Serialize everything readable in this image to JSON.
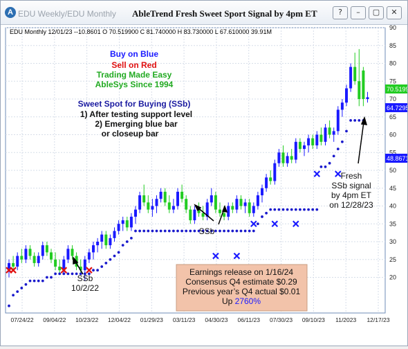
{
  "window": {
    "tabs": [
      "EDU  Weekly/EDU  Monthly"
    ],
    "title": "AbleTrend Fresh Sweet Sport Signal by 4pm ET",
    "buttons": {
      "help": "?",
      "minimize": "–",
      "restore": "▢",
      "close": "✕"
    }
  },
  "header_line": "EDU  Monthly 12/01/23 --10.8601 O 70.519900 C 81.740000 H 83.730000 L 67.610000 39.91M",
  "legend": {
    "buy": "Buy on Blue",
    "sell": "Sell on Red",
    "easy": "Trading Made Easy",
    "since": "AbleSys Since 1994"
  },
  "sweet_spot": {
    "title": "Sweet Spot for Buying (SSb)",
    "line1": "1) After testing support level",
    "line2": "2) Emerging blue bar",
    "line3": "or closeup bar"
  },
  "annotations": {
    "ssb_left": "SSb",
    "ssb_left_date": "10/2/22",
    "ssb_mid": "SSb",
    "fresh1": "Fresh",
    "fresh2": "SSb signal",
    "fresh3": "by 4pm ET",
    "fresh4": "on 12/28/23"
  },
  "earnings": {
    "line1": "Earnings release on 1/16/24",
    "line2": "Consensus Q4 estimate $0.29",
    "line3": "Previous year’s Q4 actual $0.01",
    "line4_prefix": "Up ",
    "line4_value": "2760%"
  },
  "price_tags": [
    "70.5199",
    "64.7295",
    "48.8671"
  ],
  "colors": {
    "up": "#1a1aff",
    "down": "#22cc22",
    "stop": "#1a1acc",
    "sell_x": "#e01010",
    "accent": "#1a1aff"
  },
  "chart_data": {
    "type": "candlestick",
    "title": "AbleTrend Fresh Sweet Sport Signal by 4pm ET",
    "y_ticks": [
      20,
      25,
      30,
      35,
      40,
      45,
      50,
      55,
      60,
      65,
      70,
      75,
      80,
      85,
      90
    ],
    "ylim": [
      10,
      90
    ],
    "x_tick_labels": [
      "07/24/22",
      "09/04/22",
      "10/23/22",
      "12/04/22",
      "01/29/23",
      "03/11/23",
      "04/30/23",
      "06/11/23",
      "07/30/23",
      "09/10/23",
      "11/2023",
      "12/17/23"
    ],
    "grid": true,
    "bars": [
      {
        "o": 22,
        "h": 25,
        "l": 20,
        "c": 24
      },
      {
        "o": 24,
        "h": 26,
        "l": 22,
        "c": 23
      },
      {
        "o": 23,
        "h": 27,
        "l": 22,
        "c": 26
      },
      {
        "o": 26,
        "h": 28,
        "l": 24,
        "c": 25
      },
      {
        "o": 25,
        "h": 29,
        "l": 24,
        "c": 28
      },
      {
        "o": 28,
        "h": 29,
        "l": 25,
        "c": 26
      },
      {
        "o": 26,
        "h": 27,
        "l": 23,
        "c": 24
      },
      {
        "o": 24,
        "h": 27,
        "l": 23,
        "c": 26
      },
      {
        "o": 26,
        "h": 30,
        "l": 25,
        "c": 29
      },
      {
        "o": 29,
        "h": 30,
        "l": 26,
        "c": 27
      },
      {
        "o": 27,
        "h": 28,
        "l": 24,
        "c": 25
      },
      {
        "o": 25,
        "h": 27,
        "l": 22,
        "c": 23
      },
      {
        "o": 23,
        "h": 25,
        "l": 21,
        "c": 22
      },
      {
        "o": 22,
        "h": 26,
        "l": 21,
        "c": 25
      },
      {
        "o": 25,
        "h": 29,
        "l": 24,
        "c": 28
      },
      {
        "o": 28,
        "h": 29,
        "l": 25,
        "c": 26
      },
      {
        "o": 26,
        "h": 27,
        "l": 22,
        "c": 23
      },
      {
        "o": 23,
        "h": 25,
        "l": 21,
        "c": 22
      },
      {
        "o": 22,
        "h": 26,
        "l": 19,
        "c": 25
      },
      {
        "o": 25,
        "h": 28,
        "l": 24,
        "c": 27
      },
      {
        "o": 27,
        "h": 30,
        "l": 25,
        "c": 29
      },
      {
        "o": 29,
        "h": 31,
        "l": 27,
        "c": 30
      },
      {
        "o": 30,
        "h": 33,
        "l": 28,
        "c": 32
      },
      {
        "o": 32,
        "h": 33,
        "l": 28,
        "c": 29
      },
      {
        "o": 29,
        "h": 32,
        "l": 28,
        "c": 31
      },
      {
        "o": 31,
        "h": 34,
        "l": 30,
        "c": 33
      },
      {
        "o": 33,
        "h": 36,
        "l": 32,
        "c": 35
      },
      {
        "o": 35,
        "h": 37,
        "l": 33,
        "c": 36
      },
      {
        "o": 36,
        "h": 37,
        "l": 33,
        "c": 34
      },
      {
        "o": 34,
        "h": 38,
        "l": 33,
        "c": 37
      },
      {
        "o": 37,
        "h": 40,
        "l": 35,
        "c": 39
      },
      {
        "o": 39,
        "h": 44,
        "l": 38,
        "c": 43
      },
      {
        "o": 43,
        "h": 46,
        "l": 40,
        "c": 41
      },
      {
        "o": 41,
        "h": 43,
        "l": 38,
        "c": 39
      },
      {
        "o": 39,
        "h": 42,
        "l": 37,
        "c": 40
      },
      {
        "o": 40,
        "h": 43,
        "l": 38,
        "c": 42
      },
      {
        "o": 42,
        "h": 45,
        "l": 41,
        "c": 44
      },
      {
        "o": 44,
        "h": 45,
        "l": 40,
        "c": 41
      },
      {
        "o": 41,
        "h": 43,
        "l": 38,
        "c": 39
      },
      {
        "o": 39,
        "h": 42,
        "l": 38,
        "c": 40
      },
      {
        "o": 40,
        "h": 45,
        "l": 39,
        "c": 44
      },
      {
        "o": 44,
        "h": 46,
        "l": 41,
        "c": 42
      },
      {
        "o": 42,
        "h": 43,
        "l": 38,
        "c": 39
      },
      {
        "o": 39,
        "h": 40,
        "l": 35,
        "c": 36
      },
      {
        "o": 36,
        "h": 40,
        "l": 35,
        "c": 39
      },
      {
        "o": 39,
        "h": 41,
        "l": 37,
        "c": 38
      },
      {
        "o": 38,
        "h": 40,
        "l": 36,
        "c": 37
      },
      {
        "o": 37,
        "h": 42,
        "l": 36,
        "c": 41
      },
      {
        "o": 41,
        "h": 45,
        "l": 40,
        "c": 43
      },
      {
        "o": 43,
        "h": 44,
        "l": 38,
        "c": 39
      },
      {
        "o": 39,
        "h": 41,
        "l": 37,
        "c": 38
      },
      {
        "o": 38,
        "h": 40,
        "l": 36,
        "c": 37
      },
      {
        "o": 37,
        "h": 41,
        "l": 36,
        "c": 40
      },
      {
        "o": 40,
        "h": 41,
        "l": 38,
        "c": 39
      },
      {
        "o": 39,
        "h": 43,
        "l": 38,
        "c": 42
      },
      {
        "o": 42,
        "h": 43,
        "l": 39,
        "c": 40
      },
      {
        "o": 40,
        "h": 42,
        "l": 38,
        "c": 41
      },
      {
        "o": 41,
        "h": 42,
        "l": 37,
        "c": 38
      },
      {
        "o": 38,
        "h": 41,
        "l": 37,
        "c": 40
      },
      {
        "o": 40,
        "h": 44,
        "l": 39,
        "c": 43
      },
      {
        "o": 43,
        "h": 46,
        "l": 41,
        "c": 45
      },
      {
        "o": 45,
        "h": 49,
        "l": 44,
        "c": 48
      },
      {
        "o": 48,
        "h": 50,
        "l": 46,
        "c": 47
      },
      {
        "o": 47,
        "h": 53,
        "l": 46,
        "c": 52
      },
      {
        "o": 52,
        "h": 56,
        "l": 51,
        "c": 55
      },
      {
        "o": 55,
        "h": 57,
        "l": 51,
        "c": 52
      },
      {
        "o": 52,
        "h": 55,
        "l": 51,
        "c": 54
      },
      {
        "o": 54,
        "h": 56,
        "l": 52,
        "c": 53
      },
      {
        "o": 53,
        "h": 59,
        "l": 52,
        "c": 58
      },
      {
        "o": 58,
        "h": 59,
        "l": 55,
        "c": 56
      },
      {
        "o": 56,
        "h": 58,
        "l": 54,
        "c": 57
      },
      {
        "o": 57,
        "h": 60,
        "l": 55,
        "c": 59
      },
      {
        "o": 59,
        "h": 60,
        "l": 56,
        "c": 57
      },
      {
        "o": 57,
        "h": 61,
        "l": 56,
        "c": 60
      },
      {
        "o": 60,
        "h": 62,
        "l": 57,
        "c": 58
      },
      {
        "o": 58,
        "h": 63,
        "l": 57,
        "c": 62
      },
      {
        "o": 62,
        "h": 64,
        "l": 59,
        "c": 60
      },
      {
        "o": 60,
        "h": 62,
        "l": 58,
        "c": 61
      },
      {
        "o": 61,
        "h": 68,
        "l": 60,
        "c": 67
      },
      {
        "o": 67,
        "h": 70,
        "l": 65,
        "c": 69
      },
      {
        "o": 69,
        "h": 74,
        "l": 68,
        "c": 73
      },
      {
        "o": 73,
        "h": 80,
        "l": 72,
        "c": 79
      },
      {
        "o": 79,
        "h": 83,
        "l": 74,
        "c": 75
      },
      {
        "o": 75,
        "h": 84,
        "l": 68,
        "c": 70
      },
      {
        "o": 78,
        "h": 79,
        "l": 68,
        "c": 70
      },
      {
        "o": 70,
        "h": 72,
        "l": 69,
        "c": 70.5
      }
    ],
    "stops": [
      {
        "i": 0,
        "v": 12
      },
      {
        "i": 1,
        "v": 15
      },
      {
        "i": 2,
        "v": 16
      },
      {
        "i": 3,
        "v": 17
      },
      {
        "i": 4,
        "v": 18
      },
      {
        "i": 5,
        "v": 19
      },
      {
        "i": 6,
        "v": 19
      },
      {
        "i": 7,
        "v": 19
      },
      {
        "i": 8,
        "v": 19
      },
      {
        "i": 9,
        "v": 20
      },
      {
        "i": 10,
        "v": 20
      },
      {
        "i": 11,
        "v": 21
      },
      {
        "i": 12,
        "v": 21
      },
      {
        "i": 13,
        "v": 21
      },
      {
        "i": 14,
        "v": 21
      },
      {
        "i": 15,
        "v": 21
      },
      {
        "i": 16,
        "v": 21
      },
      {
        "i": 17,
        "v": 21
      },
      {
        "i": 18,
        "v": 21
      },
      {
        "i": 19,
        "v": 21
      },
      {
        "i": 20,
        "v": 22
      },
      {
        "i": 21,
        "v": 22
      },
      {
        "i": 22,
        "v": 23
      },
      {
        "i": 23,
        "v": 24
      },
      {
        "i": 24,
        "v": 25
      },
      {
        "i": 25,
        "v": 26
      },
      {
        "i": 26,
        "v": 27
      },
      {
        "i": 27,
        "v": 29
      },
      {
        "i": 28,
        "v": 30
      },
      {
        "i": 29,
        "v": 31
      },
      {
        "i": 30,
        "v": 33
      },
      {
        "i": 31,
        "v": 33
      },
      {
        "i": 32,
        "v": 33
      },
      {
        "i": 33,
        "v": 33
      },
      {
        "i": 34,
        "v": 33
      },
      {
        "i": 35,
        "v": 33
      },
      {
        "i": 36,
        "v": 33
      },
      {
        "i": 37,
        "v": 33
      },
      {
        "i": 38,
        "v": 33
      },
      {
        "i": 39,
        "v": 33
      },
      {
        "i": 40,
        "v": 33
      },
      {
        "i": 41,
        "v": 33
      },
      {
        "i": 42,
        "v": 33
      },
      {
        "i": 43,
        "v": 33
      },
      {
        "i": 44,
        "v": 33
      },
      {
        "i": 45,
        "v": 33
      },
      {
        "i": 46,
        "v": 33
      },
      {
        "i": 47,
        "v": 33
      },
      {
        "i": 48,
        "v": 33
      },
      {
        "i": 49,
        "v": 33
      },
      {
        "i": 50,
        "v": 33
      },
      {
        "i": 51,
        "v": 33
      },
      {
        "i": 52,
        "v": 33
      },
      {
        "i": 53,
        "v": 33
      },
      {
        "i": 54,
        "v": 33
      },
      {
        "i": 55,
        "v": 33
      },
      {
        "i": 56,
        "v": 33
      },
      {
        "i": 57,
        "v": 33
      },
      {
        "i": 58,
        "v": 33
      },
      {
        "i": 59,
        "v": 35
      },
      {
        "i": 60,
        "v": 37
      },
      {
        "i": 61,
        "v": 38
      },
      {
        "i": 62,
        "v": 39
      },
      {
        "i": 63,
        "v": 39
      },
      {
        "i": 64,
        "v": 39
      },
      {
        "i": 65,
        "v": 39
      },
      {
        "i": 66,
        "v": 39
      },
      {
        "i": 67,
        "v": 39
      },
      {
        "i": 68,
        "v": 39
      },
      {
        "i": 69,
        "v": 39
      },
      {
        "i": 70,
        "v": 39
      },
      {
        "i": 71,
        "v": 39
      },
      {
        "i": 72,
        "v": 39
      },
      {
        "i": 73,
        "v": 39
      },
      {
        "i": 74,
        "v": 51
      },
      {
        "i": 75,
        "v": 51
      },
      {
        "i": 76,
        "v": 52
      },
      {
        "i": 77,
        "v": 54
      },
      {
        "i": 78,
        "v": 56
      },
      {
        "i": 79,
        "v": 58
      },
      {
        "i": 80,
        "v": 61
      },
      {
        "i": 81,
        "v": 64
      },
      {
        "i": 82,
        "v": 64
      },
      {
        "i": 83,
        "v": 64
      },
      {
        "i": 84,
        "v": 64
      }
    ],
    "sell_x": [
      {
        "i": 0,
        "v": 22
      },
      {
        "i": 1,
        "v": 22
      },
      {
        "i": 13,
        "v": 22
      },
      {
        "i": 19,
        "v": 22
      }
    ],
    "blue_x": [
      {
        "i": 49,
        "v": 26
      },
      {
        "i": 54,
        "v": 26
      },
      {
        "i": 58,
        "v": 35
      },
      {
        "i": 63,
        "v": 35
      },
      {
        "i": 68,
        "v": 35
      },
      {
        "i": 73,
        "v": 49
      },
      {
        "i": 78,
        "v": 49
      }
    ]
  }
}
